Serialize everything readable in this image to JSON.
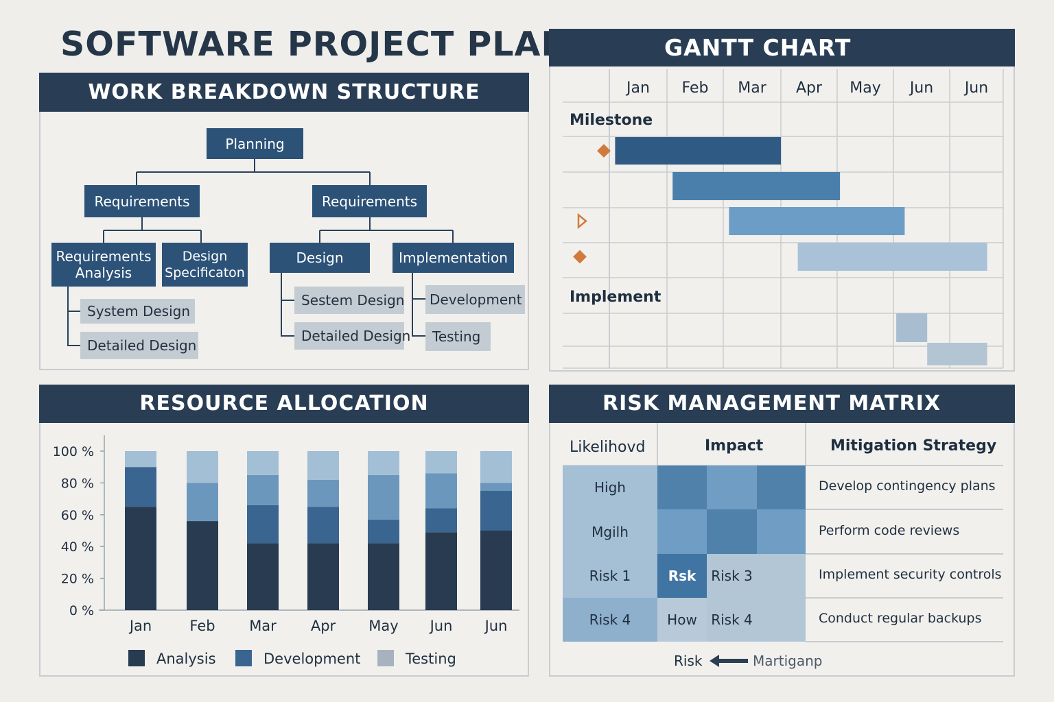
{
  "title": "SOFTWARE PROJECT PLAN",
  "wbs": {
    "header": "WORK BREAKDOWN STRUCTURE",
    "root": "Planning",
    "left": {
      "label": "Requirements",
      "children": [
        "Requirements Analysis",
        "Design Specificaton"
      ],
      "leaves": [
        "System Design",
        "Detailed Design"
      ]
    },
    "right": {
      "label": "Requirements",
      "design": "Design",
      "design_leaves": [
        "Sestem Design",
        "Detailed Design"
      ],
      "implementation": "Implementation",
      "impl_leaves": [
        "Development",
        "Testing"
      ]
    }
  },
  "gantt": {
    "header": "GANTT CHART",
    "months": [
      "Jan",
      "Feb",
      "Mar",
      "Apr",
      "May",
      "Jun",
      "Jun"
    ],
    "row_labels": [
      "Milestone",
      "Implement"
    ],
    "tasks": [
      {
        "start": 0.1,
        "end": 3.0,
        "color": "#2f5a84",
        "marker": "diamond"
      },
      {
        "start": 1.1,
        "end": 4.05,
        "color": "#4a7fac",
        "marker": null
      },
      {
        "start": 2.1,
        "end": 5.2,
        "color": "#6b9dc6",
        "marker": "triangle"
      },
      {
        "start": 3.3,
        "end": 6.7,
        "color": "#a9c2d8",
        "marker": "diamond"
      },
      {
        "start": 5.05,
        "end": 5.6,
        "color": "#a8bdd0",
        "marker": null
      },
      {
        "start": 5.6,
        "end": 6.7,
        "color": "#b3c4d3",
        "marker": null
      }
    ],
    "marker_color": "#d2793e"
  },
  "resources": {
    "header": "RESOURCE ALLOCATION",
    "chart_data": {
      "type": "bar",
      "stacked": true,
      "categories": [
        "Jan",
        "Feb",
        "Mar",
        "Apr",
        "May",
        "Jun",
        "Jun"
      ],
      "series": [
        {
          "name": "Analysis",
          "color": "#283b50",
          "values": [
            65,
            56,
            42,
            42,
            42,
            49,
            50
          ]
        },
        {
          "name": "Development",
          "color": "#3a6590",
          "values": [
            25,
            0,
            24,
            23,
            15,
            15,
            25
          ]
        },
        {
          "name": "Testing",
          "color": "#6b97bd",
          "values": [
            0,
            24,
            19,
            17,
            28,
            22,
            5
          ]
        },
        {
          "name": "",
          "color": "#a3bfd6",
          "values": [
            10,
            20,
            15,
            18,
            15,
            14,
            20
          ]
        }
      ],
      "ylim": [
        0,
        100
      ],
      "yticks": [
        "0 %",
        "20 %",
        "40 %",
        "60 %",
        "80 %",
        "100 %"
      ],
      "legend": [
        {
          "label": "Analysis",
          "color": "#283b50"
        },
        {
          "label": "Development",
          "color": "#3a6590"
        },
        {
          "label": "Testing",
          "color": "#a6b3bf"
        }
      ]
    }
  },
  "risk": {
    "header": "RISK MANAGEMENT MATRIX",
    "columns": [
      "Likelihovd",
      "Impact",
      "Mitigation Strategy"
    ],
    "rows": [
      {
        "label": "High",
        "cells": [
          "",
          "",
          ""
        ],
        "colors": [
          "#4f81ab",
          "#6f9dc4",
          "#4f81ab"
        ],
        "strategy": "Develop contingency plans"
      },
      {
        "label": "Mgilh",
        "cells": [
          "",
          "",
          ""
        ],
        "colors": [
          "#6f9dc4",
          "#4f81ab",
          "#6f9dc4"
        ],
        "strategy": "Perform code reviews"
      },
      {
        "label": "Risk 1",
        "cells": [
          "Rsk",
          "Risk 3",
          ""
        ],
        "colors": [
          "#3f74a3",
          "#b2c6d6",
          "#b2c6d6"
        ],
        "strategy": "Implement security controls"
      },
      {
        "label": "Risk 4",
        "cells": [
          "How",
          "Risk 4",
          ""
        ],
        "colors": [
          "#b8cad9",
          "#b2c6d6",
          "#b2c6d6"
        ],
        "strategy": "Conduct regular backups"
      }
    ],
    "label_colors": [
      "#a5bfd4",
      "#a5bfd4",
      "#a5bfd4",
      "#8fb0cc"
    ],
    "footer_left": "Risk",
    "footer_right": "Martiganp"
  }
}
